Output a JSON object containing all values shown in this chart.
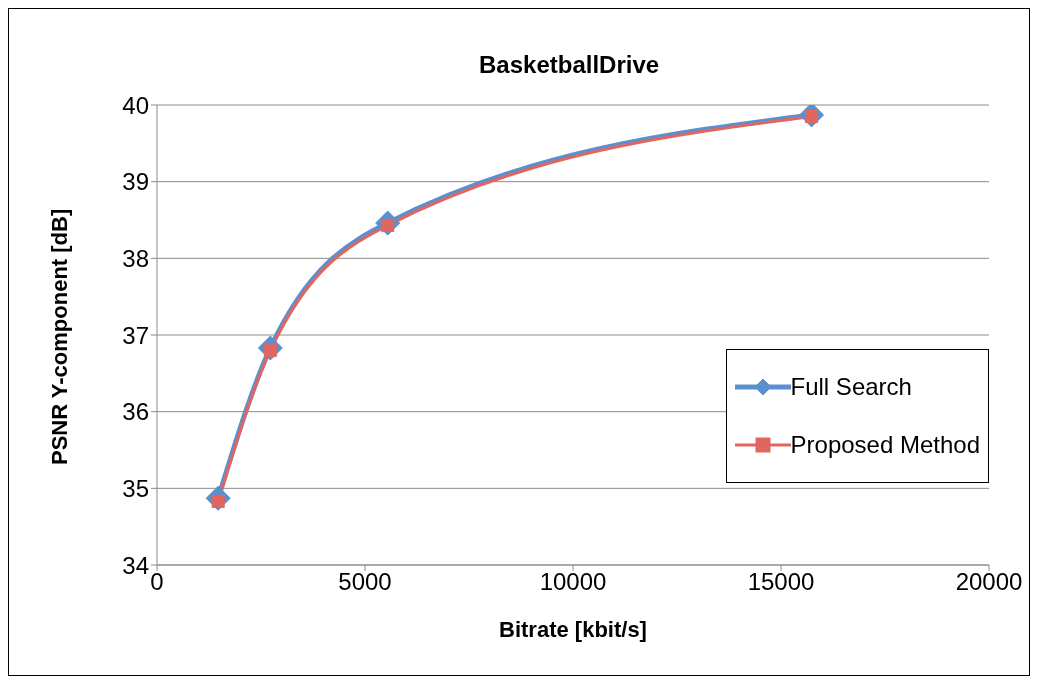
{
  "chart_data": {
    "type": "line",
    "title": "BasketballDrive",
    "xlabel": "Bitrate [kbit/s]",
    "ylabel": "PSNR Y-component [dB]",
    "xlim": [
      0,
      20000
    ],
    "xticks": [
      0,
      5000,
      10000,
      15000,
      20000
    ],
    "ylim": [
      34,
      40
    ],
    "yticks": [
      34,
      35,
      36,
      37,
      38,
      39,
      40
    ],
    "grid": "y",
    "legend": "right",
    "line_style": "solid",
    "series": [
      {
        "name": "Full Search",
        "color": "#5b8fd0",
        "marker": "diamond",
        "x": [
          1470,
          2725,
          5545,
          15735
        ],
        "values": [
          34.87,
          36.83,
          38.46,
          39.87
        ]
      },
      {
        "name": "Proposed Method",
        "color": "#e0675f",
        "marker": "square",
        "x": [
          1470,
          2725,
          5545,
          15735
        ],
        "values": [
          34.83,
          36.8,
          38.43,
          39.85
        ]
      }
    ]
  }
}
